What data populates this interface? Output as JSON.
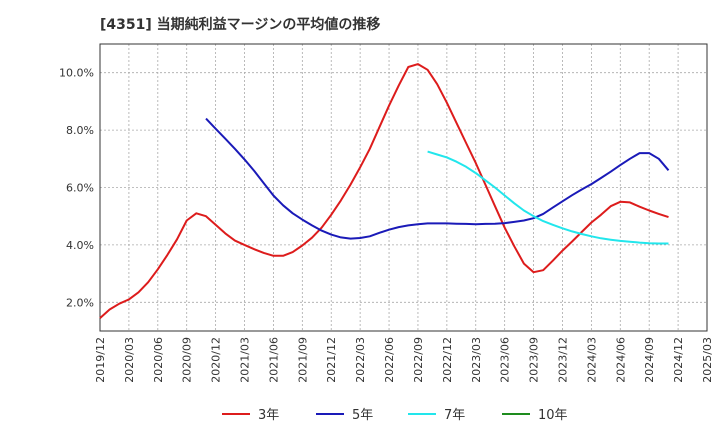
{
  "chart_data": {
    "type": "line",
    "title": "[4351]  当期純利益マージンの平均値の推移",
    "xlabel": "",
    "ylabel": "",
    "ylim": [
      1.0,
      11.0
    ],
    "y_ticks": [
      "2.0%",
      "4.0%",
      "6.0%",
      "8.0%",
      "10.0%"
    ],
    "y_tick_values": [
      2,
      4,
      6,
      8,
      10
    ],
    "x_ticks": [
      "2019/12",
      "2020/03",
      "2020/06",
      "2020/09",
      "2020/12",
      "2021/03",
      "2021/06",
      "2021/09",
      "2021/12",
      "2022/03",
      "2022/06",
      "2022/09",
      "2022/12",
      "2023/03",
      "2023/06",
      "2023/09",
      "2023/12",
      "2024/03",
      "2024/06",
      "2024/09",
      "2024/12",
      "2025/03"
    ],
    "grid": true,
    "legend_position": "bottom",
    "series": [
      {
        "name": "3年",
        "color": "#dd1c1c",
        "points": [
          [
            "2019/12",
            1.45
          ],
          [
            "2020/01",
            1.75
          ],
          [
            "2020/02",
            1.95
          ],
          [
            "2020/03",
            2.1
          ],
          [
            "2020/04",
            2.35
          ],
          [
            "2020/05",
            2.7
          ],
          [
            "2020/06",
            3.15
          ],
          [
            "2020/07",
            3.65
          ],
          [
            "2020/08",
            4.2
          ],
          [
            "2020/09",
            4.85
          ],
          [
            "2020/10",
            5.1
          ],
          [
            "2020/11",
            5.0
          ],
          [
            "2020/12",
            4.7
          ],
          [
            "2021/01",
            4.4
          ],
          [
            "2021/02",
            4.15
          ],
          [
            "2021/03",
            4.0
          ],
          [
            "2021/04",
            3.85
          ],
          [
            "2021/05",
            3.72
          ],
          [
            "2021/06",
            3.62
          ],
          [
            "2021/07",
            3.62
          ],
          [
            "2021/08",
            3.75
          ],
          [
            "2021/09",
            3.98
          ],
          [
            "2021/10",
            4.25
          ],
          [
            "2021/11",
            4.6
          ],
          [
            "2021/12",
            5.05
          ],
          [
            "2022/01",
            5.55
          ],
          [
            "2022/02",
            6.1
          ],
          [
            "2022/03",
            6.7
          ],
          [
            "2022/04",
            7.35
          ],
          [
            "2022/05",
            8.1
          ],
          [
            "2022/06",
            8.85
          ],
          [
            "2022/07",
            9.55
          ],
          [
            "2022/08",
            10.2
          ],
          [
            "2022/09",
            10.3
          ],
          [
            "2022/10",
            10.1
          ],
          [
            "2022/11",
            9.6
          ],
          [
            "2022/12",
            8.95
          ],
          [
            "2023/01",
            8.25
          ],
          [
            "2023/02",
            7.55
          ],
          [
            "2023/03",
            6.85
          ],
          [
            "2023/04",
            6.1
          ],
          [
            "2023/05",
            5.35
          ],
          [
            "2023/06",
            4.6
          ],
          [
            "2023/07",
            3.95
          ],
          [
            "2023/08",
            3.35
          ],
          [
            "2023/09",
            3.05
          ],
          [
            "2023/10",
            3.12
          ],
          [
            "2023/11",
            3.45
          ],
          [
            "2023/12",
            3.8
          ],
          [
            "2024/01",
            4.12
          ],
          [
            "2024/02",
            4.45
          ],
          [
            "2024/03",
            4.78
          ],
          [
            "2024/04",
            5.05
          ],
          [
            "2024/05",
            5.35
          ],
          [
            "2024/06",
            5.5
          ],
          [
            "2024/07",
            5.48
          ],
          [
            "2024/08",
            5.33
          ],
          [
            "2024/09",
            5.2
          ],
          [
            "2024/10",
            5.08
          ],
          [
            "2024/11",
            4.97
          ]
        ]
      },
      {
        "name": "5年",
        "color": "#1a1ab8",
        "points": [
          [
            "2020/11",
            8.4
          ],
          [
            "2020/12",
            8.05
          ],
          [
            "2021/01",
            7.7
          ],
          [
            "2021/02",
            7.35
          ],
          [
            "2021/03",
            6.98
          ],
          [
            "2021/04",
            6.58
          ],
          [
            "2021/05",
            6.15
          ],
          [
            "2021/06",
            5.72
          ],
          [
            "2021/07",
            5.38
          ],
          [
            "2021/08",
            5.1
          ],
          [
            "2021/09",
            4.88
          ],
          [
            "2021/10",
            4.68
          ],
          [
            "2021/11",
            4.5
          ],
          [
            "2021/12",
            4.36
          ],
          [
            "2022/01",
            4.26
          ],
          [
            "2022/02",
            4.22
          ],
          [
            "2022/03",
            4.24
          ],
          [
            "2022/04",
            4.3
          ],
          [
            "2022/05",
            4.42
          ],
          [
            "2022/06",
            4.53
          ],
          [
            "2022/07",
            4.62
          ],
          [
            "2022/08",
            4.68
          ],
          [
            "2022/09",
            4.72
          ],
          [
            "2022/10",
            4.75
          ],
          [
            "2022/11",
            4.75
          ],
          [
            "2022/12",
            4.75
          ],
          [
            "2023/01",
            4.74
          ],
          [
            "2023/02",
            4.73
          ],
          [
            "2023/03",
            4.72
          ],
          [
            "2023/04",
            4.73
          ],
          [
            "2023/05",
            4.74
          ],
          [
            "2023/06",
            4.76
          ],
          [
            "2023/07",
            4.8
          ],
          [
            "2023/08",
            4.85
          ],
          [
            "2023/09",
            4.93
          ],
          [
            "2023/10",
            5.08
          ],
          [
            "2023/11",
            5.3
          ],
          [
            "2023/12",
            5.52
          ],
          [
            "2024/01",
            5.73
          ],
          [
            "2024/02",
            5.93
          ],
          [
            "2024/03",
            6.12
          ],
          [
            "2024/04",
            6.33
          ],
          [
            "2024/05",
            6.55
          ],
          [
            "2024/06",
            6.78
          ],
          [
            "2024/07",
            7.0
          ],
          [
            "2024/08",
            7.2
          ],
          [
            "2024/09",
            7.2
          ],
          [
            "2024/10",
            7.0
          ],
          [
            "2024/11",
            6.6
          ]
        ]
      },
      {
        "name": "7年",
        "color": "#22e6ec",
        "points": [
          [
            "2022/10",
            7.25
          ],
          [
            "2022/11",
            7.15
          ],
          [
            "2022/12",
            7.05
          ],
          [
            "2023/01",
            6.9
          ],
          [
            "2023/02",
            6.72
          ],
          [
            "2023/03",
            6.5
          ],
          [
            "2023/04",
            6.25
          ],
          [
            "2023/05",
            6.0
          ],
          [
            "2023/06",
            5.72
          ],
          [
            "2023/07",
            5.45
          ],
          [
            "2023/08",
            5.2
          ],
          [
            "2023/09",
            5.0
          ],
          [
            "2023/10",
            4.83
          ],
          [
            "2023/11",
            4.7
          ],
          [
            "2023/12",
            4.58
          ],
          [
            "2024/01",
            4.47
          ],
          [
            "2024/02",
            4.38
          ],
          [
            "2024/03",
            4.3
          ],
          [
            "2024/04",
            4.23
          ],
          [
            "2024/05",
            4.18
          ],
          [
            "2024/06",
            4.14
          ],
          [
            "2024/07",
            4.11
          ],
          [
            "2024/08",
            4.08
          ],
          [
            "2024/09",
            4.06
          ],
          [
            "2024/10",
            4.05
          ],
          [
            "2024/11",
            4.05
          ]
        ]
      },
      {
        "name": "10年",
        "color": "#1e8c1e",
        "points": []
      }
    ]
  }
}
